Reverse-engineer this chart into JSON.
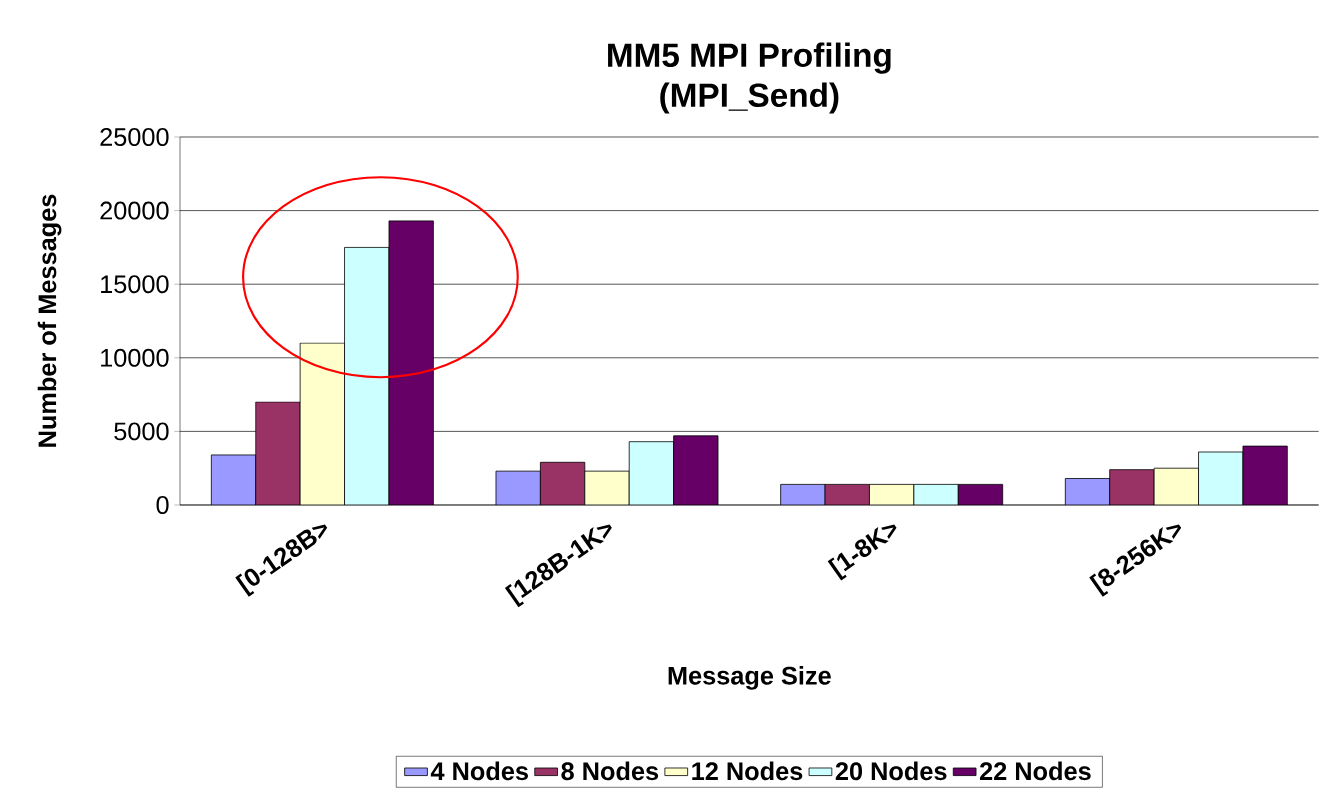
{
  "chart_data": {
    "type": "bar",
    "title": "MM5 MPI Profiling",
    "subtitle": "(MPI_Send)",
    "xlabel": "Message Size",
    "ylabel": "Number of Messages",
    "categories": [
      "[0-128B>",
      "[128B-1K>",
      "[1-8K>",
      "[8-256K>"
    ],
    "series": [
      {
        "name": "4 Nodes",
        "color": "#9999ff",
        "values": [
          3400,
          2300,
          1400,
          1800
        ]
      },
      {
        "name": "8 Nodes",
        "color": "#993366",
        "values": [
          7000,
          2900,
          1400,
          2400
        ]
      },
      {
        "name": "12 Nodes",
        "color": "#ffffcc",
        "values": [
          11000,
          2300,
          1400,
          2500
        ]
      },
      {
        "name": "20 Nodes",
        "color": "#ccffff",
        "values": [
          17500,
          4300,
          1400,
          3600
        ]
      },
      {
        "name": "22 Nodes",
        "color": "#660066",
        "values": [
          19300,
          4700,
          1400,
          4000
        ]
      }
    ],
    "ylim": [
      0,
      25000
    ],
    "yticks": [
      0,
      5000,
      10000,
      15000,
      20000,
      25000
    ],
    "grid": "y",
    "legend": "bottom"
  }
}
